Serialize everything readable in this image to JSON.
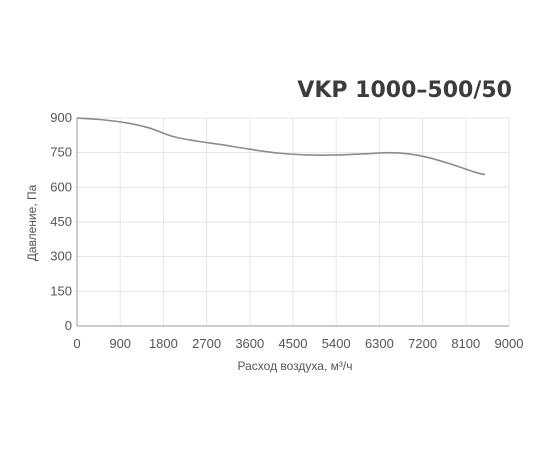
{
  "chart_data": {
    "type": "line",
    "title": "VKP 1000–500/50",
    "xlabel": "Расход воздуха, м³/ч",
    "ylabel": "Давление, Па",
    "xlim": [
      0,
      9000
    ],
    "ylim": [
      0,
      900
    ],
    "x_ticks": [
      "0",
      "900",
      "1800",
      "2700",
      "3600",
      "4500",
      "5400",
      "6300",
      "7200",
      "8100",
      "9000"
    ],
    "y_ticks": [
      "0",
      "150",
      "300",
      "450",
      "600",
      "750",
      "900"
    ],
    "grid": true,
    "series": [
      {
        "color": "#8c8c8c",
        "x": [
          0,
          500,
          1000,
          1500,
          2000,
          2500,
          3000,
          3600,
          4200,
          4800,
          5400,
          6000,
          6500,
          6900,
          7300,
          7800,
          8300,
          8500
        ],
        "y": [
          900,
          893,
          880,
          857,
          820,
          800,
          785,
          765,
          748,
          740,
          740,
          745,
          750,
          745,
          730,
          700,
          665,
          655
        ]
      }
    ]
  }
}
